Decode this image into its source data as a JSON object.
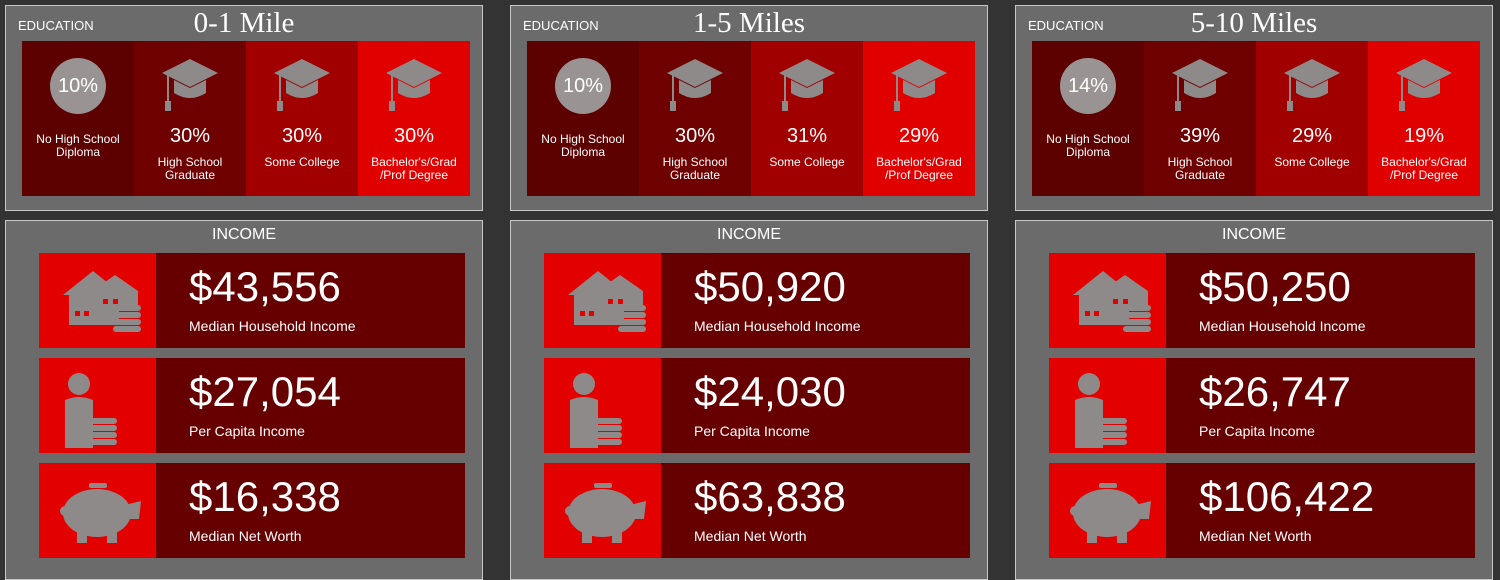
{
  "panels": [
    {
      "education": {
        "label": "EDUCATION",
        "title": "0-1 Mile",
        "items": [
          {
            "value": "10%",
            "label": "No High School Diploma"
          },
          {
            "value": "30%",
            "label": "High School Graduate"
          },
          {
            "value": "30%",
            "label": "Some College"
          },
          {
            "value": "30%",
            "label": "Bachelor's/Grad /Prof Degree"
          }
        ]
      },
      "income": {
        "title": "INCOME",
        "items": [
          {
            "value": "$43,556",
            "label": "Median Household Income"
          },
          {
            "value": "$27,054",
            "label": "Per Capita Income"
          },
          {
            "value": "$16,338",
            "label": "Median Net Worth"
          }
        ]
      }
    },
    {
      "education": {
        "label": "EDUCATION",
        "title": "1-5 Miles",
        "items": [
          {
            "value": "10%",
            "label": "No High School Diploma"
          },
          {
            "value": "30%",
            "label": "High School Graduate"
          },
          {
            "value": "31%",
            "label": "Some College"
          },
          {
            "value": "29%",
            "label": "Bachelor's/Grad /Prof Degree"
          }
        ]
      },
      "income": {
        "title": "INCOME",
        "items": [
          {
            "value": "$50,920",
            "label": "Median Household Income"
          },
          {
            "value": "$24,030",
            "label": "Per Capita Income"
          },
          {
            "value": "$63,838",
            "label": "Median Net Worth"
          }
        ]
      }
    },
    {
      "education": {
        "label": "EDUCATION",
        "title": "5-10 Miles",
        "items": [
          {
            "value": "14%",
            "label": "No High School Diploma"
          },
          {
            "value": "39%",
            "label": "High School Graduate"
          },
          {
            "value": "29%",
            "label": "Some College"
          },
          {
            "value": "19%",
            "label": "Bachelor's/Grad /Prof Degree"
          }
        ]
      },
      "income": {
        "title": "INCOME",
        "items": [
          {
            "value": "$50,250",
            "label": "Median Household Income"
          },
          {
            "value": "$26,747",
            "label": "Per Capita Income"
          },
          {
            "value": "$106,422",
            "label": "Median Net Worth"
          }
        ]
      }
    }
  ]
}
